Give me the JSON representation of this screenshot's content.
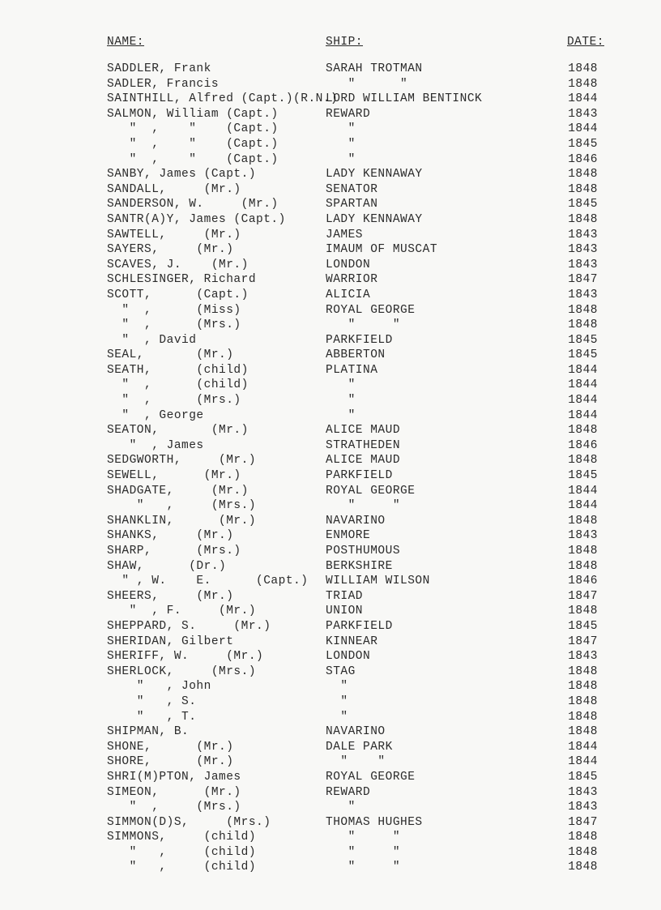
{
  "header": {
    "name": "NAME:",
    "ship": "SHIP:",
    "date": "DATE:"
  },
  "rows": [
    {
      "name": "SADDLER, Frank",
      "ship": "SARAH TROTMAN",
      "date": "1848"
    },
    {
      "name": "SADLER, Francis",
      "ship": "   \"      \"",
      "date": "1848"
    },
    {
      "name": "SAINTHILL, Alfred (Capt.)(R.N.)",
      "ship": "LORD WILLIAM BENTINCK",
      "date": "1844"
    },
    {
      "name": "SALMON, William (Capt.)",
      "ship": "REWARD",
      "date": "1843"
    },
    {
      "name": "   \"  ,    \"    (Capt.)",
      "ship": "   \"",
      "date": "1844"
    },
    {
      "name": "   \"  ,    \"    (Capt.)",
      "ship": "   \"",
      "date": "1845"
    },
    {
      "name": "   \"  ,    \"    (Capt.)",
      "ship": "   \"",
      "date": "1846"
    },
    {
      "name": "SANBY, James (Capt.)",
      "ship": "LADY KENNAWAY",
      "date": "1848"
    },
    {
      "name": "SANDALL,     (Mr.)",
      "ship": "SENATOR",
      "date": "1848"
    },
    {
      "name": "SANDERSON, W.     (Mr.)",
      "ship": "SPARTAN",
      "date": "1845"
    },
    {
      "name": "SANTR(A)Y, James (Capt.)",
      "ship": "LADY KENNAWAY",
      "date": "1848"
    },
    {
      "name": "SAWTELL,     (Mr.)",
      "ship": "JAMES",
      "date": "1843"
    },
    {
      "name": "SAYERS,     (Mr.)",
      "ship": "IMAUM OF MUSCAT",
      "date": "1843"
    },
    {
      "name": "SCAVES, J.    (Mr.)",
      "ship": "LONDON",
      "date": "1843"
    },
    {
      "name": "SCHLESINGER, Richard",
      "ship": "WARRIOR",
      "date": "1847"
    },
    {
      "name": "SCOTT,      (Capt.)",
      "ship": "ALICIA",
      "date": "1843"
    },
    {
      "name": "  \"  ,      (Miss)",
      "ship": "ROYAL GEORGE",
      "date": "1848"
    },
    {
      "name": "  \"  ,      (Mrs.)",
      "ship": "   \"     \"",
      "date": "1848"
    },
    {
      "name": "  \"  , David",
      "ship": "PARKFIELD",
      "date": "1845"
    },
    {
      "name": "SEAL,       (Mr.)",
      "ship": "ABBERTON",
      "date": "1845"
    },
    {
      "name": "SEATH,      (child)",
      "ship": "PLATINA",
      "date": "1844"
    },
    {
      "name": "  \"  ,      (child)",
      "ship": "   \"",
      "date": "1844"
    },
    {
      "name": "  \"  ,      (Mrs.)",
      "ship": "   \"",
      "date": "1844"
    },
    {
      "name": "  \"  , George",
      "ship": "   \"",
      "date": "1844"
    },
    {
      "name": "SEATON,       (Mr.)",
      "ship": "ALICE MAUD",
      "date": "1848"
    },
    {
      "name": "   \"  , James",
      "ship": "STRATHEDEN",
      "date": "1846"
    },
    {
      "name": "SEDGWORTH,     (Mr.)",
      "ship": "ALICE MAUD",
      "date": "1848"
    },
    {
      "name": "SEWELL,      (Mr.)",
      "ship": "PARKFIELD",
      "date": "1845"
    },
    {
      "name": "SHADGATE,     (Mr.)",
      "ship": "ROYAL GEORGE",
      "date": "1844"
    },
    {
      "name": "    \"   ,     (Mrs.)",
      "ship": "   \"     \"",
      "date": "1844"
    },
    {
      "name": "SHANKLIN,      (Mr.)",
      "ship": "NAVARINO",
      "date": "1848"
    },
    {
      "name": "SHANKS,     (Mr.)",
      "ship": "ENMORE",
      "date": "1843"
    },
    {
      "name": "SHARP,      (Mrs.)",
      "ship": "POSTHUMOUS",
      "date": "1848"
    },
    {
      "name": "SHAW,      (Dr.)",
      "ship": "BERKSHIRE",
      "date": "1848"
    },
    {
      "name": "  \" , W.    E.      (Capt.)",
      "ship": "WILLIAM WILSON",
      "date": "1846"
    },
    {
      "name": "SHEERS,     (Mr.)",
      "ship": "TRIAD",
      "date": "1847"
    },
    {
      "name": "   \"  , F.     (Mr.)",
      "ship": "UNION",
      "date": "1848"
    },
    {
      "name": "SHEPPARD, S.     (Mr.)",
      "ship": "PARKFIELD",
      "date": "1845"
    },
    {
      "name": "SHERIDAN, Gilbert",
      "ship": "KINNEAR",
      "date": "1847"
    },
    {
      "name": "SHERIFF, W.     (Mr.)",
      "ship": "LONDON",
      "date": "1843"
    },
    {
      "name": "SHERLOCK,     (Mrs.)",
      "ship": "STAG",
      "date": "1848"
    },
    {
      "name": "    \"   , John",
      "ship": "  \"",
      "date": "1848"
    },
    {
      "name": "    \"   , S.",
      "ship": "  \"",
      "date": "1848"
    },
    {
      "name": "    \"   , T.",
      "ship": "  \"",
      "date": "1848"
    },
    {
      "name": "SHIPMAN, B.",
      "ship": "NAVARINO",
      "date": "1848"
    },
    {
      "name": "SHONE,      (Mr.)",
      "ship": "DALE PARK",
      "date": "1844"
    },
    {
      "name": "SHORE,      (Mr.)",
      "ship": "  \"    \"",
      "date": "1844"
    },
    {
      "name": "SHRI(M)PTON, James",
      "ship": "ROYAL GEORGE",
      "date": "1845"
    },
    {
      "name": "SIMEON,      (Mr.)",
      "ship": "REWARD",
      "date": "1843"
    },
    {
      "name": "   \"  ,     (Mrs.)",
      "ship": "   \"",
      "date": "1843"
    },
    {
      "name": "SIMMON(D)S,     (Mrs.)",
      "ship": "THOMAS HUGHES",
      "date": "1847"
    },
    {
      "name": "SIMMONS,     (child)",
      "ship": "   \"     \"",
      "date": "1848"
    },
    {
      "name": "   \"   ,     (child)",
      "ship": "   \"     \"",
      "date": "1848"
    },
    {
      "name": "   \"   ,     (child)",
      "ship": "   \"     \"",
      "date": "1848"
    }
  ]
}
